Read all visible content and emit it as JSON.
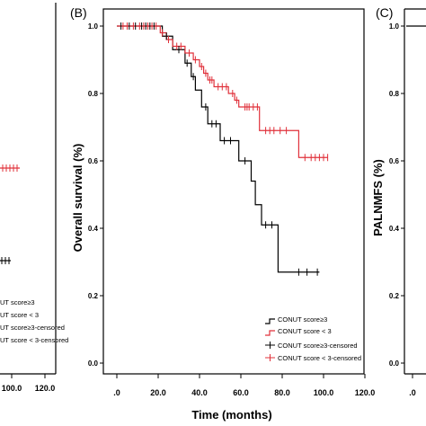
{
  "panels": {
    "left": {
      "x_ticks": [
        "100.0",
        "120.0"
      ],
      "legend_fragments": [
        "UT score≥3",
        "UT score < 3",
        "UT score≥3-censored",
        "UT score < 3-censored"
      ]
    },
    "center": {
      "label": "(B)",
      "legend": [
        {
          "label": "CONUT score≥3",
          "color": "#000000",
          "kind": "line"
        },
        {
          "label": "CONUT score < 3",
          "color": "#e0303a",
          "kind": "line"
        },
        {
          "label": "CONUT score≥3-censored",
          "color": "#000000",
          "kind": "censor"
        },
        {
          "label": "CONUT score < 3-censored",
          "color": "#e0303a",
          "kind": "censor"
        }
      ]
    },
    "right": {
      "label": "(C)",
      "ylabel": "PALNMFS (%)",
      "y_ticks": [
        "1.0",
        "0.8",
        "0.6",
        "0.4",
        "0.2",
        "0.0"
      ],
      "x_ticks": [
        ".0"
      ]
    }
  },
  "chart_data": {
    "type": "line",
    "xlabel": "Time (months)",
    "ylabel": "Overall survival (%)",
    "xlim": [
      0,
      120
    ],
    "ylim": [
      0,
      1.0
    ],
    "x_ticks": [
      ".0",
      "20.0",
      "40.0",
      "60.0",
      "80.0",
      "100.0",
      "120.0"
    ],
    "y_ticks": [
      "0.0",
      "0.2",
      "0.4",
      "0.6",
      "0.8",
      "1.0"
    ],
    "grid": false,
    "legend_position": "bottom-right",
    "series": [
      {
        "name": "CONUT score≥3",
        "color": "#000000",
        "steps": [
          [
            0,
            1.0
          ],
          [
            22,
            0.97
          ],
          [
            27,
            0.93
          ],
          [
            33,
            0.89
          ],
          [
            36,
            0.85
          ],
          [
            38,
            0.81
          ],
          [
            41,
            0.76
          ],
          [
            44,
            0.71
          ],
          [
            50,
            0.66
          ],
          [
            59,
            0.6
          ],
          [
            65,
            0.54
          ],
          [
            67,
            0.47
          ],
          [
            70,
            0.41
          ],
          [
            78,
            0.27
          ]
        ],
        "end": 98,
        "censored": [
          [
            2,
            1.0
          ],
          [
            6,
            1.0
          ],
          [
            9,
            1.0
          ],
          [
            12,
            1.0
          ],
          [
            14,
            1.0
          ],
          [
            16,
            1.0
          ],
          [
            18,
            1.0
          ],
          [
            24,
            0.97
          ],
          [
            30,
            0.93
          ],
          [
            34,
            0.89
          ],
          [
            37,
            0.85
          ],
          [
            43,
            0.76
          ],
          [
            46,
            0.71
          ],
          [
            48,
            0.71
          ],
          [
            52,
            0.66
          ],
          [
            55,
            0.66
          ],
          [
            62,
            0.6
          ],
          [
            72,
            0.41
          ],
          [
            75,
            0.41
          ],
          [
            88,
            0.27
          ],
          [
            92,
            0.27
          ],
          [
            97,
            0.27
          ]
        ]
      },
      {
        "name": "CONUT score < 3",
        "color": "#e0303a",
        "steps": [
          [
            0,
            1.0
          ],
          [
            21,
            0.98
          ],
          [
            24,
            0.96
          ],
          [
            27,
            0.94
          ],
          [
            33,
            0.92
          ],
          [
            37,
            0.9
          ],
          [
            40,
            0.88
          ],
          [
            42,
            0.86
          ],
          [
            44,
            0.84
          ],
          [
            47,
            0.82
          ],
          [
            54,
            0.8
          ],
          [
            57,
            0.78
          ],
          [
            59,
            0.76
          ],
          [
            69,
            0.69
          ],
          [
            88,
            0.61
          ]
        ],
        "end": 102,
        "censored": [
          [
            3,
            1.0
          ],
          [
            5,
            1.0
          ],
          [
            8,
            1.0
          ],
          [
            11,
            1.0
          ],
          [
            13,
            1.0
          ],
          [
            15,
            1.0
          ],
          [
            17,
            1.0
          ],
          [
            19,
            1.0
          ],
          [
            22,
            0.98
          ],
          [
            25,
            0.96
          ],
          [
            29,
            0.94
          ],
          [
            31,
            0.94
          ],
          [
            35,
            0.92
          ],
          [
            38,
            0.9
          ],
          [
            41,
            0.88
          ],
          [
            43,
            0.86
          ],
          [
            45,
            0.84
          ],
          [
            46,
            0.84
          ],
          [
            49,
            0.82
          ],
          [
            51,
            0.82
          ],
          [
            53,
            0.82
          ],
          [
            56,
            0.8
          ],
          [
            58,
            0.78
          ],
          [
            62,
            0.76
          ],
          [
            63,
            0.76
          ],
          [
            64,
            0.76
          ],
          [
            66,
            0.76
          ],
          [
            68,
            0.76
          ],
          [
            72,
            0.69
          ],
          [
            74,
            0.69
          ],
          [
            76,
            0.69
          ],
          [
            79,
            0.69
          ],
          [
            82,
            0.69
          ],
          [
            91,
            0.61
          ],
          [
            94,
            0.61
          ],
          [
            96,
            0.61
          ],
          [
            98,
            0.61
          ],
          [
            100,
            0.61
          ],
          [
            102,
            0.61
          ]
        ]
      }
    ]
  }
}
